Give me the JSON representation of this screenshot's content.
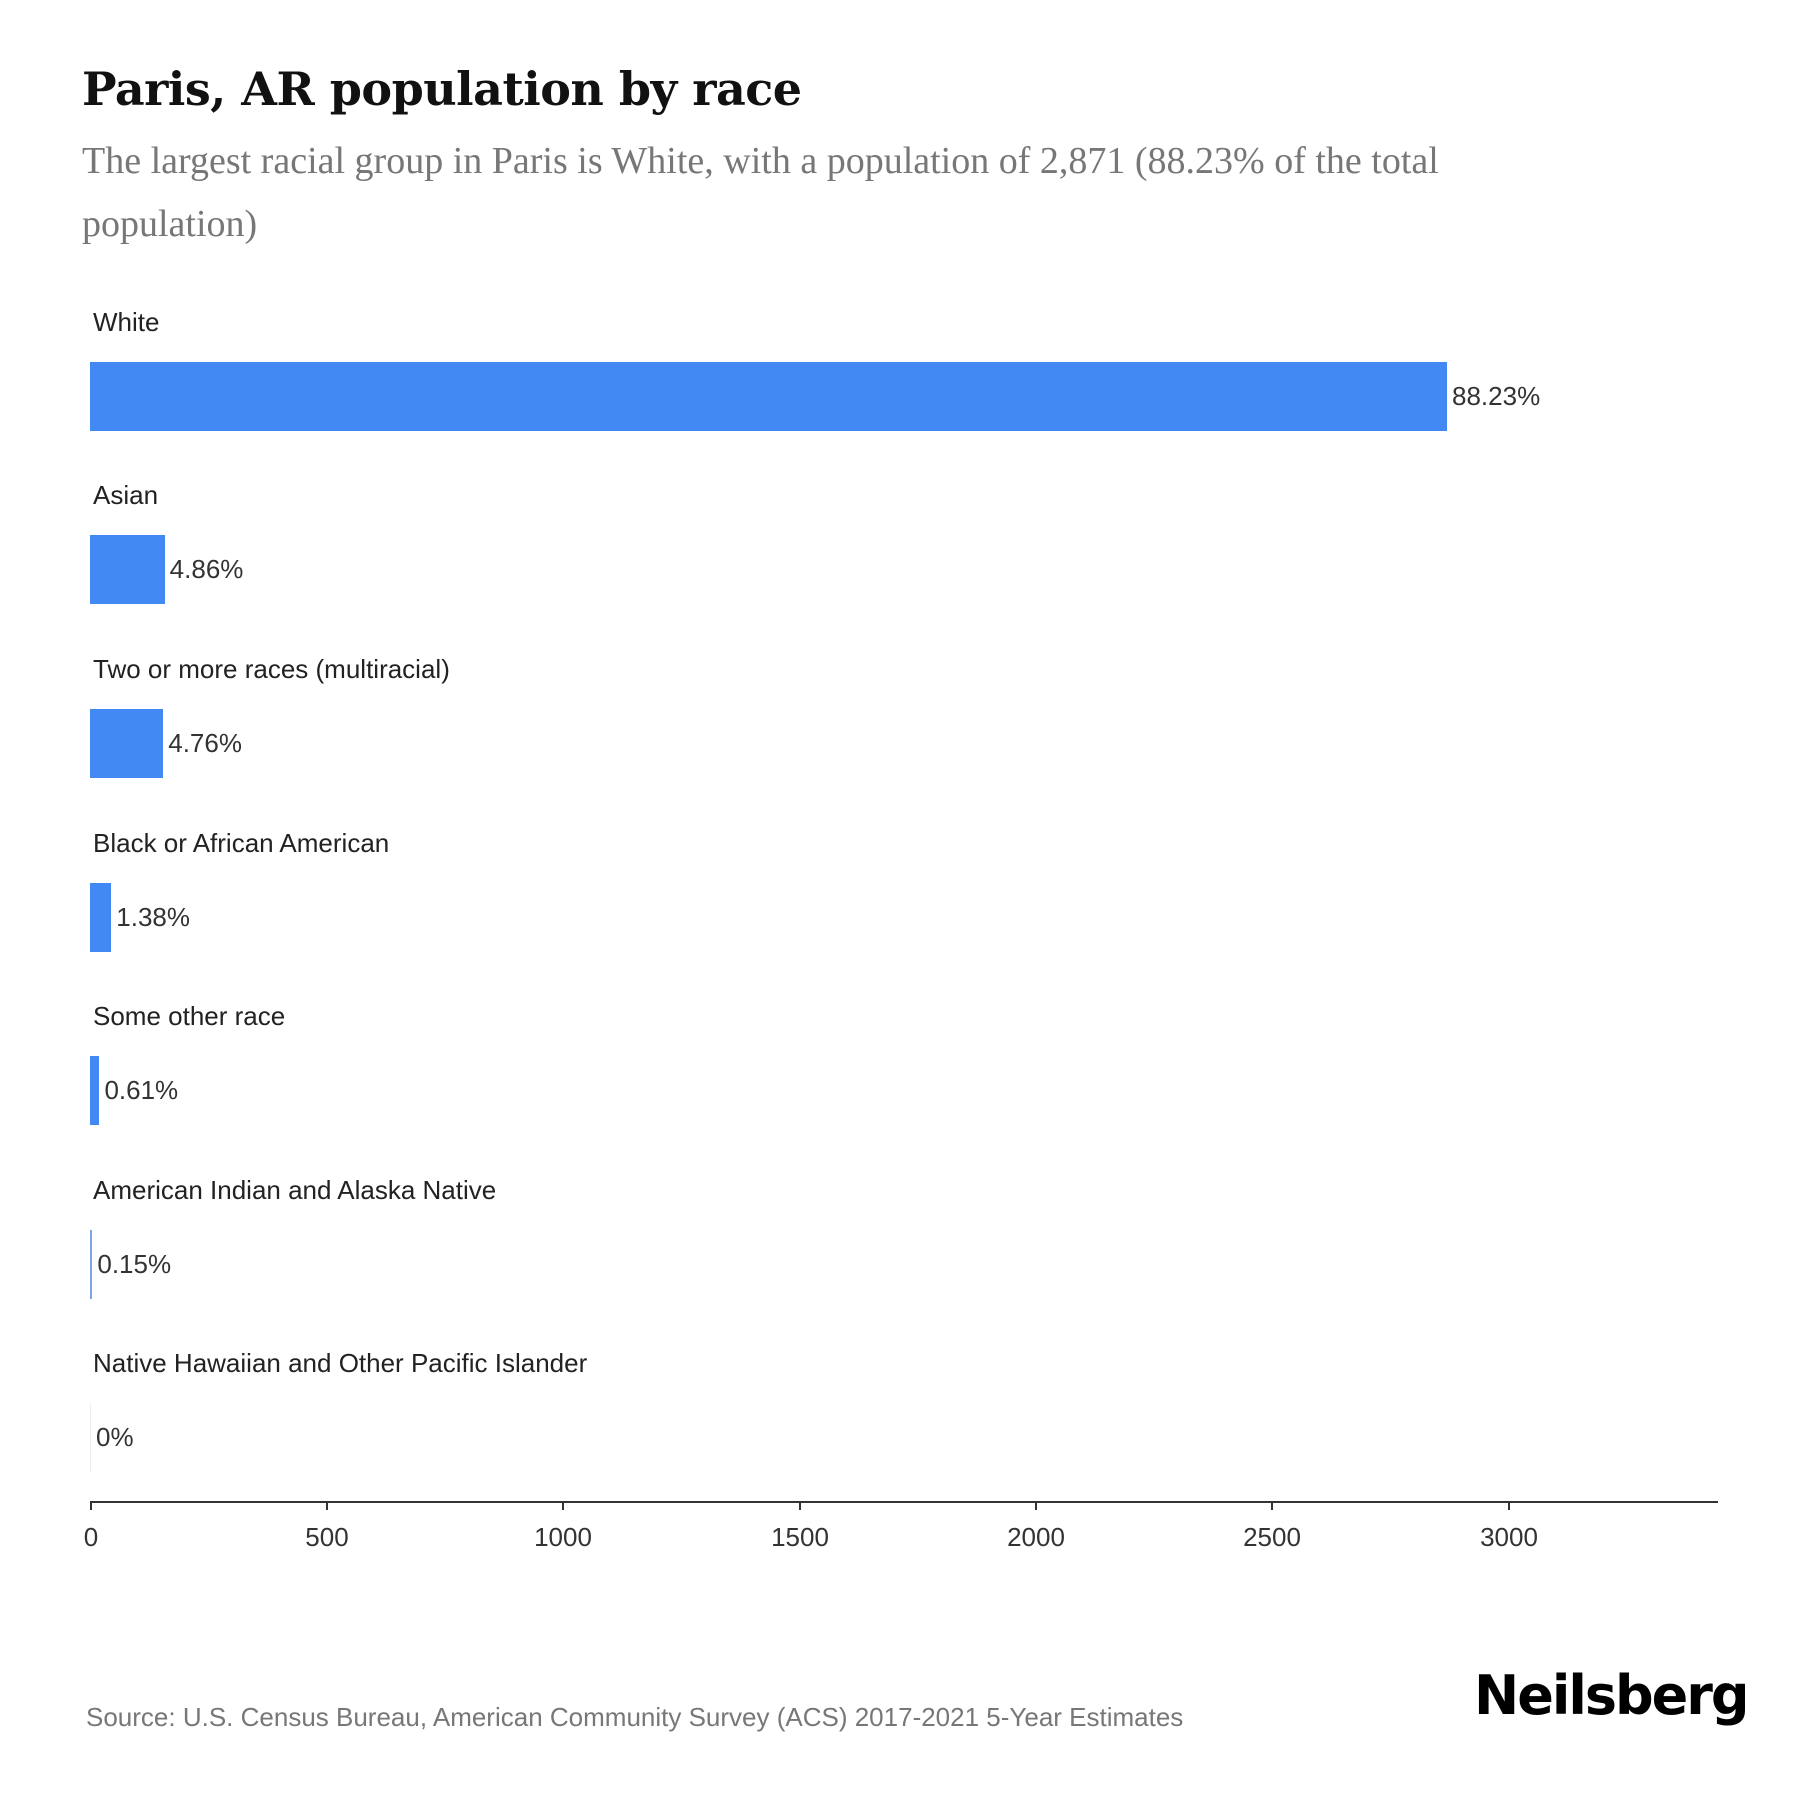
{
  "header": {
    "title": "Paris, AR population by race",
    "subtitle": "The largest racial group in Paris is White, with a population of 2,871 (88.23% of the total population)"
  },
  "colors": {
    "bar": "#4389F3",
    "title": "#111111",
    "subtitle": "#777777",
    "axis": "#333333"
  },
  "chart_data": {
    "type": "bar",
    "orientation": "horizontal",
    "title": "Paris, AR population by race",
    "subtitle": "The largest racial group in Paris is White, with a population of 2,871 (88.23% of the total population)",
    "xlabel": "",
    "ylabel": "",
    "categories": [
      "White",
      "Asian",
      "Two or more races (multiracial)",
      "Black or African American",
      "Some other race",
      "American Indian and Alaska Native",
      "Native Hawaiian and Other Pacific Islander"
    ],
    "values": [
      2871,
      158,
      155,
      45,
      20,
      5,
      0
    ],
    "percent_labels": [
      "88.23%",
      "4.86%",
      "4.76%",
      "1.38%",
      "0.61%",
      "0.15%",
      "0%"
    ],
    "xlim": [
      0,
      3440
    ],
    "xticks": [
      0,
      500,
      1000,
      1500,
      2000,
      2500,
      3000
    ],
    "grid": false,
    "legend": null
  },
  "rows": [
    {
      "label": "White",
      "value": 2871,
      "pct": "88.23%"
    },
    {
      "label": "Asian",
      "value": 158,
      "pct": "4.86%"
    },
    {
      "label": "Two or more races (multiracial)",
      "value": 155,
      "pct": "4.76%"
    },
    {
      "label": "Black or African American",
      "value": 45,
      "pct": "1.38%"
    },
    {
      "label": "Some other race",
      "value": 20,
      "pct": "0.61%"
    },
    {
      "label": "American Indian and Alaska Native",
      "value": 5,
      "pct": "0.15%"
    },
    {
      "label": "Native Hawaiian and Other Pacific Islander",
      "value": 0,
      "pct": "0%"
    }
  ],
  "axis": {
    "ticks": [
      "0",
      "500",
      "1000",
      "1500",
      "2000",
      "2500",
      "3000"
    ]
  },
  "footer": {
    "source": "Source: U.S. Census Bureau, American Community Survey (ACS) 2017-2021 5-Year Estimates",
    "logo": "Neilsberg"
  }
}
